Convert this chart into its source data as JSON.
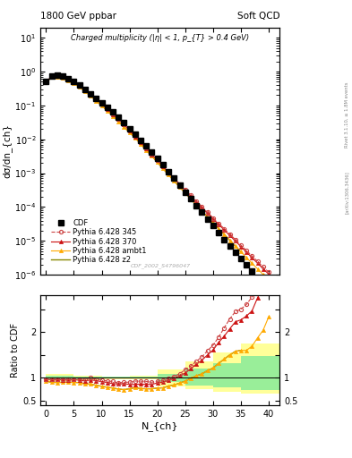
{
  "title_left": "1800 GeV ppbar",
  "title_right": "Soft QCD",
  "main_title": "Charged multiplicity (|η| < 1, p_{T} > 0.4 GeV)",
  "ylabel_main": "dσ/dn_{ch}",
  "ylabel_ratio": "Ratio to CDF",
  "xlabel": "N_{ch}",
  "right_label_top": "Rivet 3.1.10, ≥ 1.8M events",
  "right_label_bottom": "[arXiv:1306.3436]",
  "watermark": "CDF_2002_S4796047",
  "legend_entries": [
    "CDF",
    "Pythia 6.428 345",
    "Pythia 6.428 370",
    "Pythia 6.428 ambt1",
    "Pythia 6.428 z2"
  ],
  "cdf_x": [
    0,
    1,
    2,
    3,
    4,
    5,
    6,
    7,
    8,
    9,
    10,
    11,
    12,
    13,
    14,
    15,
    16,
    17,
    18,
    19,
    20,
    21,
    22,
    23,
    24,
    25,
    26,
    27,
    28,
    29,
    30,
    31,
    32,
    33,
    34,
    35,
    36,
    37,
    38,
    39,
    40
  ],
  "cdf_y": [
    0.52,
    0.75,
    0.78,
    0.72,
    0.62,
    0.5,
    0.39,
    0.3,
    0.22,
    0.165,
    0.12,
    0.088,
    0.063,
    0.045,
    0.031,
    0.021,
    0.014,
    0.0095,
    0.0063,
    0.0042,
    0.0027,
    0.00175,
    0.0011,
    0.0007,
    0.00044,
    0.00028,
    0.000175,
    0.00011,
    7e-05,
    4.4e-05,
    2.8e-05,
    1.75e-05,
    1.1e-05,
    7e-06,
    4.5e-06,
    3e-06,
    2e-06,
    1.3e-06,
    8e-07,
    5e-07,
    3e-07
  ],
  "p345_x": [
    0,
    1,
    2,
    3,
    4,
    5,
    6,
    7,
    8,
    9,
    10,
    11,
    12,
    13,
    14,
    15,
    16,
    17,
    18,
    19,
    20,
    21,
    22,
    23,
    24,
    25,
    26,
    27,
    28,
    29,
    30,
    31,
    32,
    33,
    34,
    35,
    36,
    37,
    38,
    39,
    40
  ],
  "p345_y": [
    0.5,
    0.72,
    0.75,
    0.7,
    0.6,
    0.48,
    0.38,
    0.29,
    0.22,
    0.16,
    0.115,
    0.082,
    0.058,
    0.04,
    0.028,
    0.019,
    0.013,
    0.0088,
    0.0058,
    0.0038,
    0.0025,
    0.00165,
    0.00108,
    0.00072,
    0.00048,
    0.00033,
    0.00022,
    0.00015,
    0.000102,
    7e-05,
    4.8e-05,
    3.3e-05,
    2.3e-05,
    1.6e-05,
    1.1e-05,
    7.5e-06,
    5.2e-06,
    3.6e-06,
    2.5e-06,
    1.7e-06,
    1.2e-06
  ],
  "p370_x": [
    0,
    1,
    2,
    3,
    4,
    5,
    6,
    7,
    8,
    9,
    10,
    11,
    12,
    13,
    14,
    15,
    16,
    17,
    18,
    19,
    20,
    21,
    22,
    23,
    24,
    25,
    26,
    27,
    28,
    29,
    30,
    31,
    32,
    33,
    34,
    35,
    36,
    37,
    38,
    39,
    40
  ],
  "p370_y": [
    0.5,
    0.72,
    0.75,
    0.69,
    0.59,
    0.48,
    0.37,
    0.28,
    0.21,
    0.155,
    0.11,
    0.079,
    0.055,
    0.039,
    0.027,
    0.018,
    0.012,
    0.0082,
    0.0054,
    0.0036,
    0.0024,
    0.00158,
    0.00104,
    0.00069,
    0.00046,
    0.00031,
    0.00021,
    0.000143,
    9.7e-05,
    6.6e-05,
    4.5e-05,
    3.1e-05,
    2.1e-05,
    1.45e-05,
    1e-05,
    6.8e-06,
    4.7e-06,
    3.2e-06,
    2.2e-06,
    1.5e-06,
    1.05e-06
  ],
  "pambt_x": [
    0,
    1,
    2,
    3,
    4,
    5,
    6,
    7,
    8,
    9,
    10,
    11,
    12,
    13,
    14,
    15,
    16,
    17,
    18,
    19,
    20,
    21,
    22,
    23,
    24,
    25,
    26,
    27,
    28,
    29,
    30,
    31,
    32,
    33,
    34,
    35,
    36,
    37,
    38,
    39,
    40
  ],
  "pambt_y": [
    0.48,
    0.68,
    0.7,
    0.65,
    0.56,
    0.45,
    0.35,
    0.26,
    0.19,
    0.138,
    0.098,
    0.07,
    0.049,
    0.034,
    0.023,
    0.016,
    0.011,
    0.0073,
    0.0048,
    0.0032,
    0.0021,
    0.00137,
    0.0009,
    0.00059,
    0.00039,
    0.00026,
    0.000173,
    0.000115,
    7.6e-05,
    5.1e-05,
    3.4e-05,
    2.3e-05,
    1.55e-05,
    1.05e-05,
    7.1e-06,
    4.8e-06,
    3.2e-06,
    2.2e-06,
    1.5e-06,
    1.02e-06,
    7e-07
  ],
  "pz2_x": [
    0,
    1,
    2,
    3,
    4,
    5,
    6,
    7,
    8,
    9,
    10,
    11,
    12,
    13,
    14,
    15,
    16,
    17,
    18,
    19,
    20,
    21,
    22,
    23,
    24,
    25,
    26,
    27,
    28,
    29,
    30,
    31,
    32,
    33,
    34,
    35
  ],
  "pz2_y": [
    0.48,
    0.68,
    0.7,
    0.65,
    0.56,
    0.45,
    0.35,
    0.26,
    0.19,
    0.138,
    0.098,
    0.07,
    0.049,
    0.034,
    0.023,
    0.016,
    0.011,
    0.0073,
    0.0048,
    0.0032,
    0.0021,
    0.00137,
    0.0009,
    0.00059,
    0.00039,
    0.00026,
    0.000173,
    0.000115,
    7.6e-05,
    5.1e-05,
    3.4e-05,
    2.3e-05,
    1.55e-05,
    1.05e-05,
    7.1e-06,
    4.8e-06
  ],
  "color_cdf": "#000000",
  "color_345": "#cc4444",
  "color_370": "#cc1111",
  "color_ambt": "#ffaa00",
  "color_z2": "#888800",
  "ylim_main": [
    1e-06,
    20
  ],
  "ylim_ratio": [
    0.4,
    2.8
  ],
  "xlim": [
    -1,
    42
  ],
  "band_edges": [
    0,
    5,
    10,
    15,
    20,
    25,
    30,
    35,
    38,
    42
  ],
  "yellow_upper": [
    1.08,
    1.05,
    1.03,
    1.04,
    1.18,
    1.35,
    1.55,
    1.75,
    1.75,
    0.52
  ],
  "yellow_lower": [
    0.92,
    0.95,
    0.97,
    0.96,
    0.82,
    0.76,
    0.7,
    0.65,
    0.65,
    0.43
  ],
  "green_upper": [
    1.05,
    1.03,
    1.02,
    1.02,
    1.09,
    1.2,
    1.33,
    1.48,
    1.48,
    0.73
  ],
  "green_lower": [
    0.95,
    0.97,
    0.98,
    0.98,
    0.91,
    0.84,
    0.79,
    0.73,
    0.73,
    0.65
  ]
}
